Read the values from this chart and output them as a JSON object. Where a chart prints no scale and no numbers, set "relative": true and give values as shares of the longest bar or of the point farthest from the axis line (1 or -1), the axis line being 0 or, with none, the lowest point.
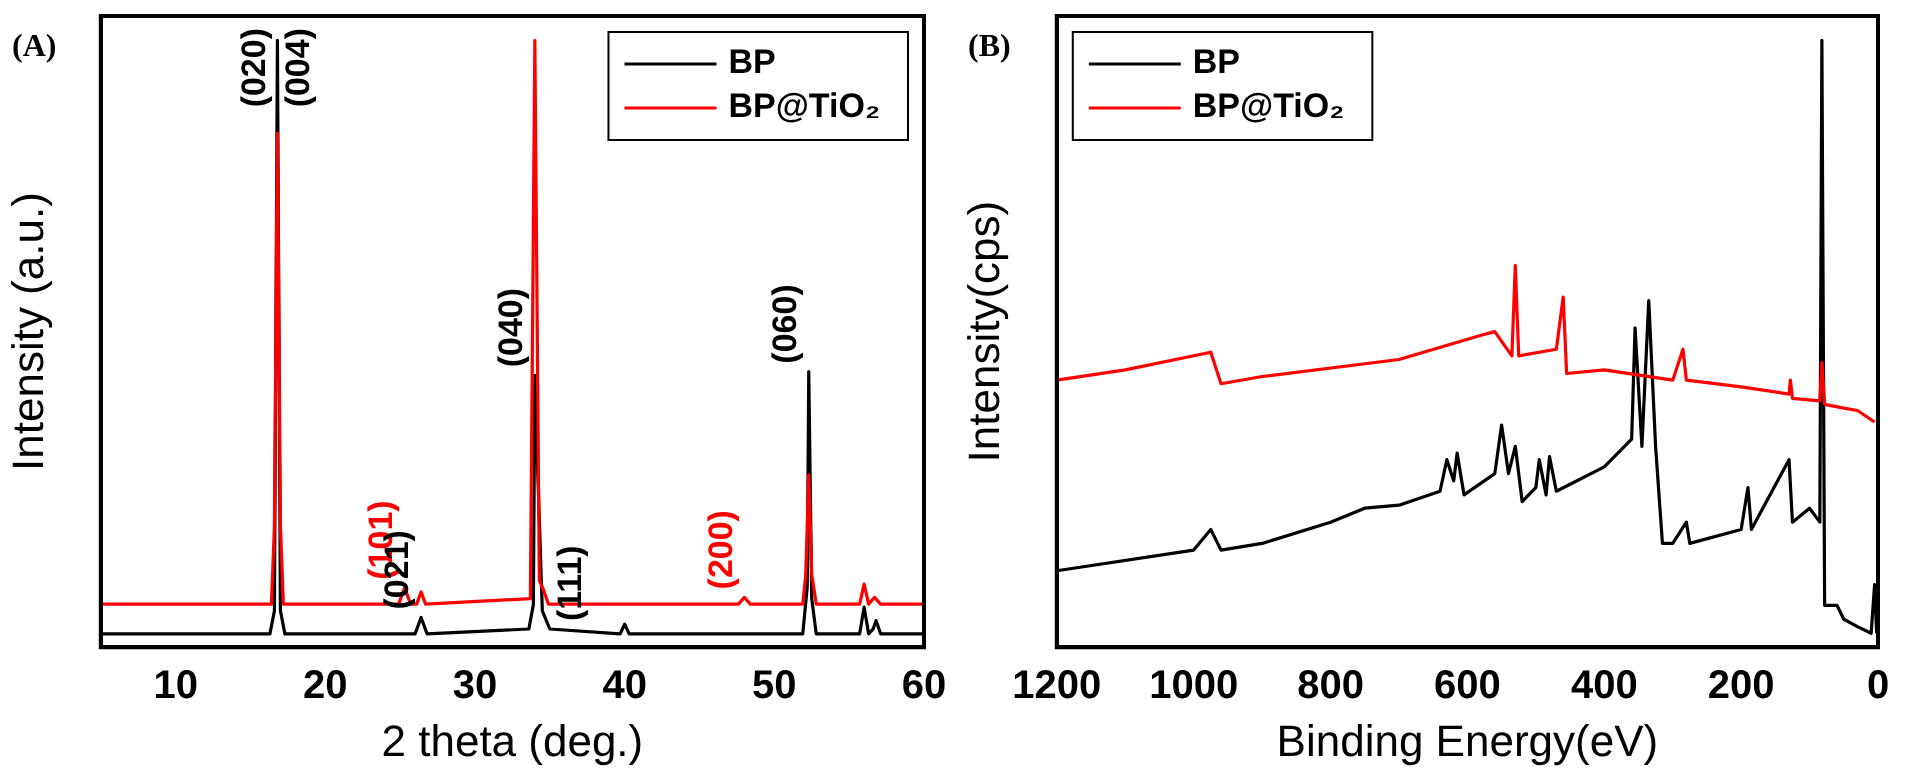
{
  "chart_data": [
    {
      "type": "line",
      "title": "(A)",
      "xlabel": "2 theta (deg.)",
      "ylabel": "Intensity (a.u.)",
      "relative": true,
      "xlim": [
        5,
        60
      ],
      "xticks": [
        10,
        20,
        30,
        40,
        50,
        60
      ],
      "legend": "top right",
      "marker": "none",
      "grid": false,
      "series": [
        {
          "name": "BP",
          "color": "#000000",
          "x": [
            5,
            16.3,
            16.6,
            16.8,
            17.0,
            17.3,
            26.0,
            26.4,
            26.8,
            33.6,
            33.9,
            34.0,
            34.2,
            34.5,
            35.0,
            39.7,
            40.0,
            40.3,
            51.9,
            52.2,
            52.3,
            52.5,
            52.8,
            55.7,
            56.0,
            56.3,
            56.6,
            56.8,
            57.1,
            60
          ],
          "values": [
            0.022,
            0.022,
            0.06,
            1,
            0.06,
            0.022,
            0.022,
            0.049,
            0.022,
            0.03,
            0.07,
            0.448,
            0.284,
            0.06,
            0.03,
            0.022,
            0.038,
            0.022,
            0.022,
            0.1,
            0.454,
            0.08,
            0.022,
            0.022,
            0.066,
            0.022,
            0.03,
            0.044,
            0.022,
            0.022
          ]
        },
        {
          "name": "BP@TiO₂",
          "color": "#ff0000",
          "x": [
            5,
            16.4,
            16.6,
            16.8,
            17.0,
            17.2,
            24.9,
            25.3,
            25.7,
            26.1,
            26.4,
            26.7,
            33.7,
            34.0,
            34.3,
            34.6,
            34.9,
            47.6,
            48.0,
            48.4,
            51.9,
            52.1,
            52.3,
            52.5,
            52.8,
            55.7,
            56.0,
            56.3,
            56.7,
            57.1,
            60
          ],
          "values": [
            0.071,
            0.071,
            0.2,
            0.847,
            0.2,
            0.071,
            0.071,
            0.098,
            0.071,
            0.071,
            0.091,
            0.071,
            0.08,
            1,
            0.11,
            0.093,
            0.071,
            0.071,
            0.082,
            0.071,
            0.071,
            0.12,
            0.284,
            0.12,
            0.071,
            0.071,
            0.104,
            0.071,
            0.082,
            0.071,
            0.071
          ]
        }
      ],
      "annotations": [
        {
          "text": "(020)",
          "x": 16.8,
          "y": 1
        },
        {
          "text": "(004)",
          "x": 16.8,
          "y": 1
        },
        {
          "text": "(040)",
          "x": 34.0,
          "y": 0.448
        },
        {
          "text": "(101)",
          "x": 25.3,
          "y": 0.098
        },
        {
          "text": "(021)",
          "x": 26.4,
          "y": 0.049
        },
        {
          "text": "(111)",
          "x": 35.0,
          "y": 0.03
        },
        {
          "text": "(200)",
          "x": 48.0,
          "y": 0.082
        },
        {
          "text": "(060)",
          "x": 52.3,
          "y": 0.454
        }
      ]
    },
    {
      "type": "line",
      "title": "(B)",
      "xlabel": "Binding Energy(eV)",
      "ylabel": "Intensity(cps)",
      "relative": true,
      "xlim": [
        1200,
        0
      ],
      "xticks": [
        1200,
        1000,
        800,
        600,
        400,
        200,
        0
      ],
      "legend": "top left",
      "marker": "none",
      "grid": false,
      "series": [
        {
          "name": "BP",
          "color": "#000000",
          "x": [
            1200,
            1000,
            975,
            960,
            900,
            800,
            750,
            700,
            640,
            630,
            620,
            615,
            605,
            560,
            550,
            540,
            530,
            520,
            500,
            495,
            485,
            480,
            470,
            400,
            360,
            355,
            345,
            335,
            325,
            315,
            300,
            280,
            275,
            200,
            190,
            185,
            130,
            125,
            100,
            85,
            82,
            78,
            60,
            50,
            30,
            10,
            5,
            2
          ],
          "values": [
            0.126,
            0.16,
            0.194,
            0.16,
            0.171,
            0.206,
            0.229,
            0.234,
            0.257,
            0.309,
            0.274,
            0.32,
            0.251,
            0.286,
            0.366,
            0.286,
            0.331,
            0.24,
            0.263,
            0.309,
            0.251,
            0.314,
            0.257,
            0.297,
            0.343,
            0.526,
            0.331,
            0.571,
            0.331,
            0.171,
            0.171,
            0.206,
            0.171,
            0.194,
            0.263,
            0.194,
            0.309,
            0.206,
            0.229,
            0.206,
            1,
            0.069,
            0.069,
            0.046,
            0.034,
            0.023,
            0.103,
            0.023
          ]
        },
        {
          "name": "BP@TiO₂",
          "color": "#ff0000",
          "x": [
            1200,
            1100,
            975,
            960,
            900,
            700,
            580,
            560,
            535,
            530,
            525,
            470,
            460,
            455,
            400,
            300,
            285,
            280,
            200,
            130,
            128,
            125,
            85,
            82,
            78,
            50,
            30,
            5
          ],
          "values": [
            0.44,
            0.457,
            0.486,
            0.434,
            0.446,
            0.474,
            0.514,
            0.52,
            0.48,
            0.629,
            0.48,
            0.491,
            0.577,
            0.451,
            0.457,
            0.44,
            0.491,
            0.44,
            0.429,
            0.417,
            0.44,
            0.41,
            0.406,
            0.469,
            0.4,
            0.394,
            0.39,
            0.371
          ]
        }
      ]
    }
  ]
}
